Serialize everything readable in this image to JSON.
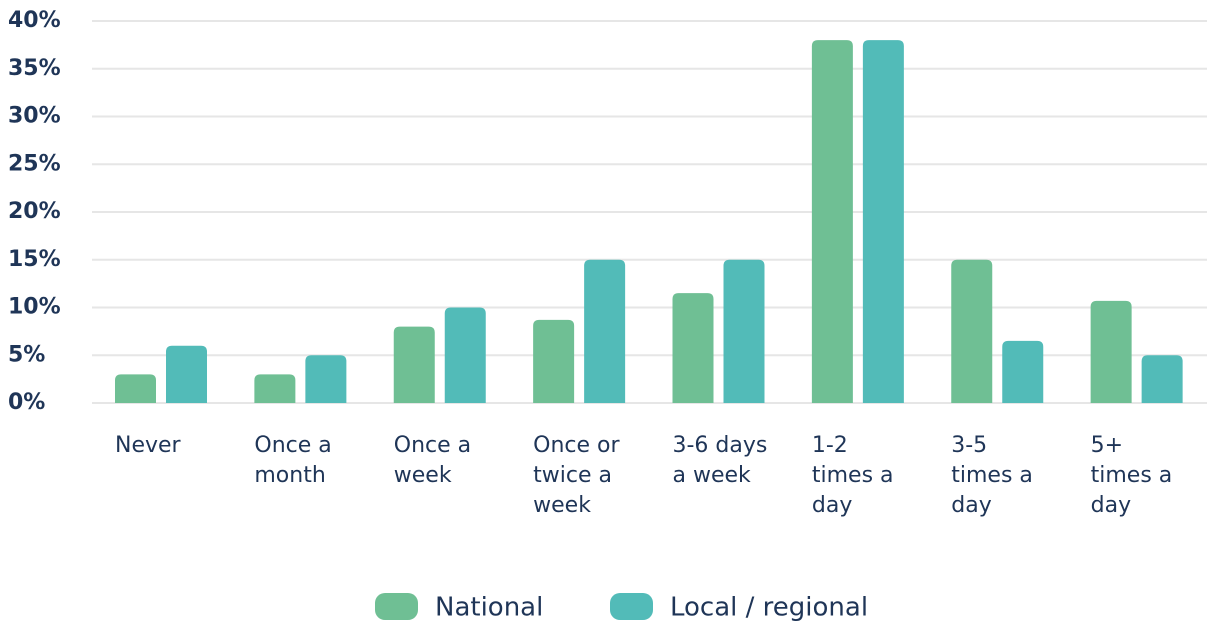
{
  "chart_data": {
    "type": "bar",
    "categories": [
      "Never",
      "Once a month",
      "Once a week",
      "Once or twice a week",
      "3-6 days a week",
      "1-2 times a day",
      "3-5 times a day",
      "5+ times a day"
    ],
    "series": [
      {
        "name": "National",
        "color": "#6fbf94",
        "values": [
          3,
          3,
          8,
          8.7,
          11.5,
          38,
          15,
          10.7
        ]
      },
      {
        "name": "Local / regional",
        "color": "#52bbb8",
        "values": [
          6,
          5,
          10,
          15,
          15,
          38,
          6.5,
          5
        ]
      }
    ],
    "ylim": [
      0,
      40
    ],
    "yticks": [
      {
        "value": 0,
        "label": "0%"
      },
      {
        "value": 5,
        "label": "5%"
      },
      {
        "value": 10,
        "label": "10%"
      },
      {
        "value": 15,
        "label": "15%"
      },
      {
        "value": 20,
        "label": "20%"
      },
      {
        "value": 25,
        "label": "25%"
      },
      {
        "value": 30,
        "label": "30%"
      },
      {
        "value": 35,
        "label": "35%"
      },
      {
        "value": 40,
        "label": "40%"
      }
    ],
    "grid": true
  }
}
